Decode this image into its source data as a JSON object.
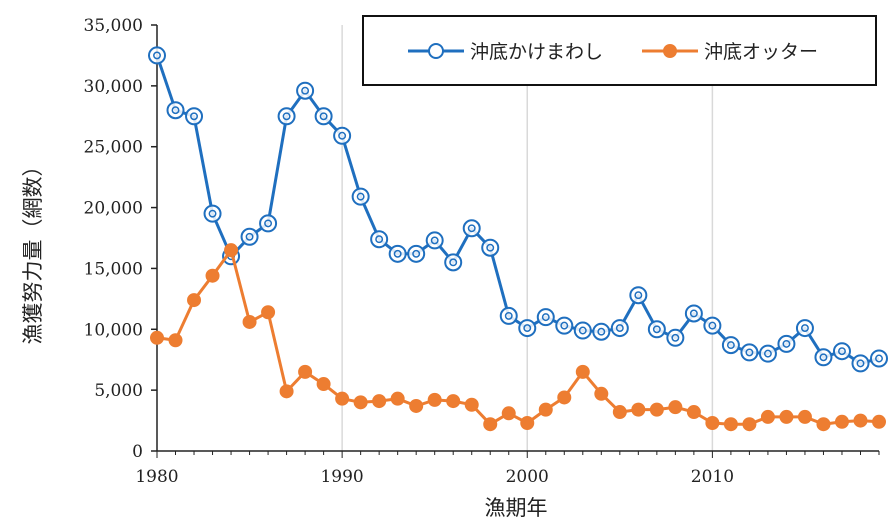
{
  "chart_data": {
    "type": "line",
    "xlabel": "漁期年",
    "ylabel": "漁獲努力量（網数）",
    "xlim": [
      1980,
      2019
    ],
    "ylim": [
      0,
      35000
    ],
    "x_ticks": [
      "1980",
      "1990",
      "2000",
      "2010"
    ],
    "y_ticks": [
      "0",
      "5,000",
      "10,000",
      "15,000",
      "20,000",
      "25,000",
      "30,000",
      "35,000"
    ],
    "grid": "vertical",
    "legend_position": "top-right",
    "x": [
      1980,
      1981,
      1982,
      1983,
      1984,
      1985,
      1986,
      1987,
      1988,
      1989,
      1990,
      1991,
      1992,
      1993,
      1994,
      1995,
      1996,
      1997,
      1998,
      1999,
      2000,
      2001,
      2002,
      2003,
      2004,
      2005,
      2006,
      2007,
      2008,
      2009,
      2010,
      2011,
      2012,
      2013,
      2014,
      2015,
      2016,
      2017,
      2018,
      2019
    ],
    "series": [
      {
        "name": "沖底かけまわし",
        "color": "#1f6fbf",
        "marker": "open-circle",
        "values": [
          32500,
          28000,
          27500,
          19500,
          16000,
          17600,
          18700,
          27500,
          29600,
          27500,
          25900,
          20900,
          17400,
          16200,
          16200,
          17300,
          15500,
          18300,
          16700,
          11100,
          10100,
          11000,
          10300,
          9900,
          9800,
          10100,
          12800,
          10000,
          9300,
          11300,
          10300,
          8700,
          8100,
          8000,
          8800,
          10100,
          7700,
          8200,
          7200,
          7600
        ]
      },
      {
        "name": "沖底オッター",
        "color": "#ed7d31",
        "marker": "filled-circle",
        "values": [
          9300,
          9100,
          12400,
          14400,
          16500,
          10600,
          11400,
          4900,
          6500,
          5500,
          4300,
          4000,
          4100,
          4300,
          3700,
          4200,
          4100,
          3800,
          2200,
          3100,
          2300,
          3400,
          4400,
          6500,
          4700,
          3200,
          3400,
          3400,
          3600,
          3200,
          2300,
          2200,
          2200,
          2800,
          2800,
          2800,
          2200,
          2400,
          2500,
          2400
        ]
      }
    ]
  }
}
